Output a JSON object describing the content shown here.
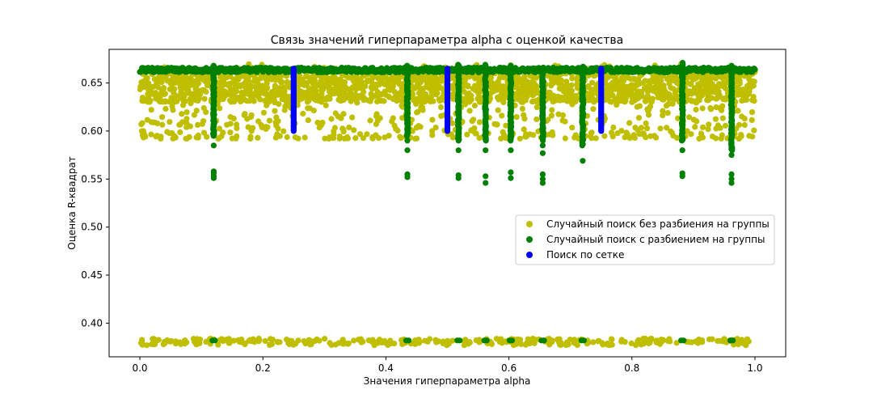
{
  "chart_data": {
    "type": "scatter",
    "title": "Связь значений гиперпараметра alpha с оценкой качества",
    "xlabel": "Значения гиперпараметра alpha",
    "ylabel": "Оценка R-квадрат",
    "xlim": [
      -0.05,
      1.05
    ],
    "ylim": [
      0.365,
      0.685
    ],
    "xticks": [
      {
        "value": 0.0,
        "label": "0.0"
      },
      {
        "value": 0.2,
        "label": "0.2"
      },
      {
        "value": 0.4,
        "label": "0.4"
      },
      {
        "value": 0.6,
        "label": "0.6"
      },
      {
        "value": 0.8,
        "label": "0.8"
      },
      {
        "value": 1.0,
        "label": "1.0"
      }
    ],
    "yticks": [
      {
        "value": 0.4,
        "label": "0.40"
      },
      {
        "value": 0.45,
        "label": "0.45"
      },
      {
        "value": 0.5,
        "label": "0.50"
      },
      {
        "value": 0.55,
        "label": "0.55"
      },
      {
        "value": 0.6,
        "label": "0.60"
      },
      {
        "value": 0.65,
        "label": "0.65"
      }
    ],
    "grid": false,
    "legend_position": "center-right",
    "series": [
      {
        "name": "Случайный поиск без разбиения на группы",
        "color": "#bfbf00",
        "x_range": [
          0.0,
          1.0
        ],
        "main_band_y": [
          0.592,
          0.67
        ],
        "dense_band_y": [
          0.63,
          0.665
        ],
        "low_band_y": [
          0.377,
          0.384
        ]
      },
      {
        "name": "Случайный поиск с разбиением на группы",
        "color": "#008000",
        "top_line": {
          "x_range": [
            0.0,
            1.0
          ],
          "y": [
            0.661,
            0.666
          ]
        },
        "columns": [
          {
            "x": 0.12,
            "y_range": [
              0.595,
              0.668
            ],
            "outliers": [
              0.585,
              0.553,
              0.556,
              0.558,
              0.551
            ],
            "low": 0.382
          },
          {
            "x": 0.435,
            "y_range": [
              0.595,
              0.668
            ],
            "outliers": [
              0.59,
              0.58,
              0.552,
              0.555
            ],
            "low": 0.382
          },
          {
            "x": 0.518,
            "y_range": [
              0.59,
              0.669
            ],
            "outliers": [
              0.58,
              0.554,
              0.551
            ],
            "low": 0.382
          },
          {
            "x": 0.562,
            "y_range": [
              0.59,
              0.669
            ],
            "outliers": [
              0.58,
              0.553,
              0.546
            ],
            "low": 0.382
          },
          {
            "x": 0.603,
            "y_range": [
              0.59,
              0.668
            ],
            "outliers": [
              0.58,
              0.557,
              0.551
            ],
            "low": 0.382
          },
          {
            "x": 0.655,
            "y_range": [
              0.59,
              0.666
            ],
            "outliers": [
              0.585,
              0.577,
              0.555,
              0.55,
              0.546
            ],
            "low": 0.382
          },
          {
            "x": 0.72,
            "y_range": [
              0.585,
              0.667
            ],
            "outliers": [
              0.569
            ],
            "low": 0.382
          },
          {
            "x": 0.882,
            "y_range": [
              0.59,
              0.671
            ],
            "outliers": [
              0.58,
              0.556,
              0.553
            ],
            "low": 0.382
          },
          {
            "x": 0.962,
            "y_range": [
              0.58,
              0.668
            ],
            "outliers": [
              0.575,
              0.555,
              0.55,
              0.546
            ],
            "low": 0.382
          }
        ]
      },
      {
        "name": "Поиск по сетке",
        "color": "#0000ff",
        "columns": [
          {
            "x": 0.25,
            "y_range": [
              0.6,
              0.665
            ]
          },
          {
            "x": 0.5,
            "y_range": [
              0.6,
              0.665
            ]
          },
          {
            "x": 0.75,
            "y_range": [
              0.6,
              0.665
            ]
          }
        ]
      }
    ]
  }
}
